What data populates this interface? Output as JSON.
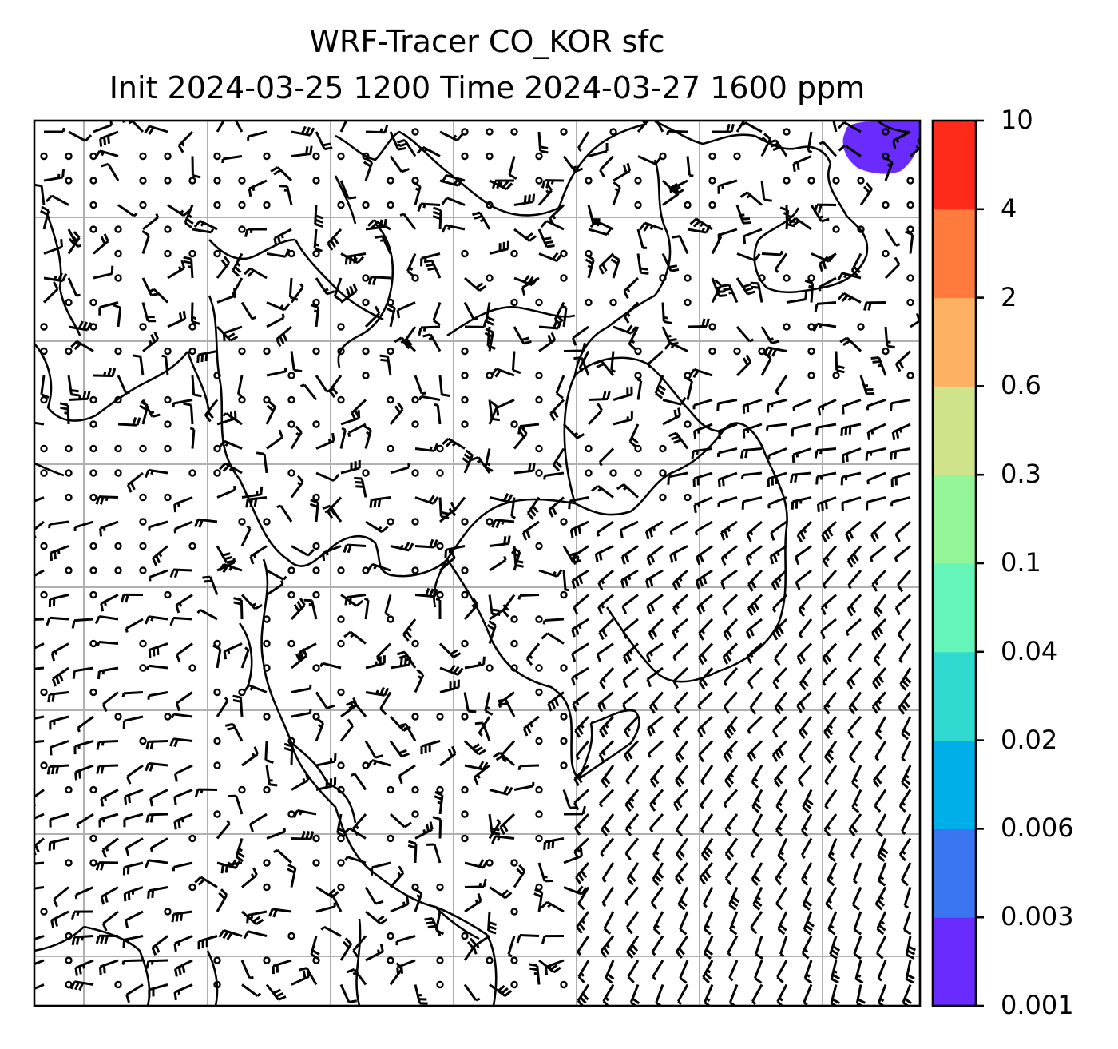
{
  "title": {
    "line1": "WRF-Tracer CO_KOR sfc",
    "line2": "Init 2024-03-25 1200 Time 2024-03-27 1600 ppm"
  },
  "colorbar": {
    "levels": [
      "0.001",
      "0.003",
      "0.006",
      "0.02",
      "0.04",
      "0.1",
      "0.3",
      "0.6",
      "2",
      "4",
      "10"
    ],
    "colors": [
      "#6a2bff",
      "#3a76f0",
      "#00aee8",
      "#2fd9cf",
      "#66f5b8",
      "#93f597",
      "#cfe38a",
      "#fcb062",
      "#ff7a3d",
      "#ff2b1a"
    ]
  },
  "map": {
    "field": "CO_KOR",
    "level": "sfc",
    "units": "ppm",
    "grid_lines": true,
    "wind_barbs": true,
    "nonzero_area": "upper-right corner",
    "nonzero_color": "#6a2bff"
  }
}
